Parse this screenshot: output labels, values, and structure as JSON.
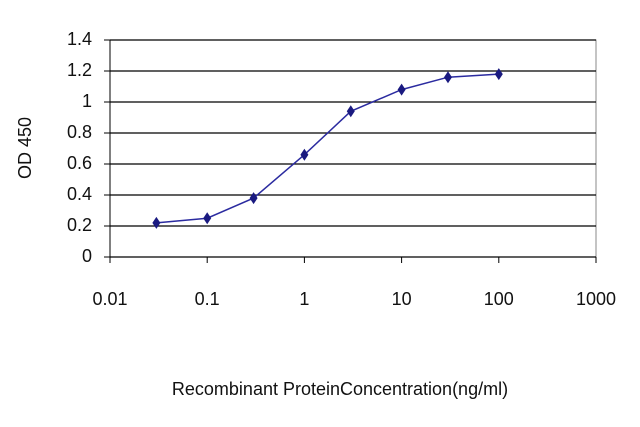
{
  "chart_data": {
    "type": "line",
    "x_label": "Recombinant ProteinConcentration(ng/ml)",
    "y_label": "OD 450",
    "x": [
      0.03,
      0.1,
      0.3,
      1,
      3,
      10,
      30,
      100
    ],
    "values": [
      0.22,
      0.25,
      0.38,
      0.66,
      0.94,
      1.08,
      1.16,
      1.18
    ],
    "color": "#2b2ba0",
    "marker_color": "#1a1a80",
    "xlim": [
      0.01,
      1000
    ],
    "xticks": [
      0.01,
      0.1,
      1,
      10,
      100,
      1000
    ],
    "xscale": "log",
    "ylim": [
      0,
      1.4
    ],
    "yticks": [
      0,
      0.2,
      0.4,
      0.6,
      0.8,
      1,
      1.2,
      1.4
    ],
    "grid": true
  }
}
